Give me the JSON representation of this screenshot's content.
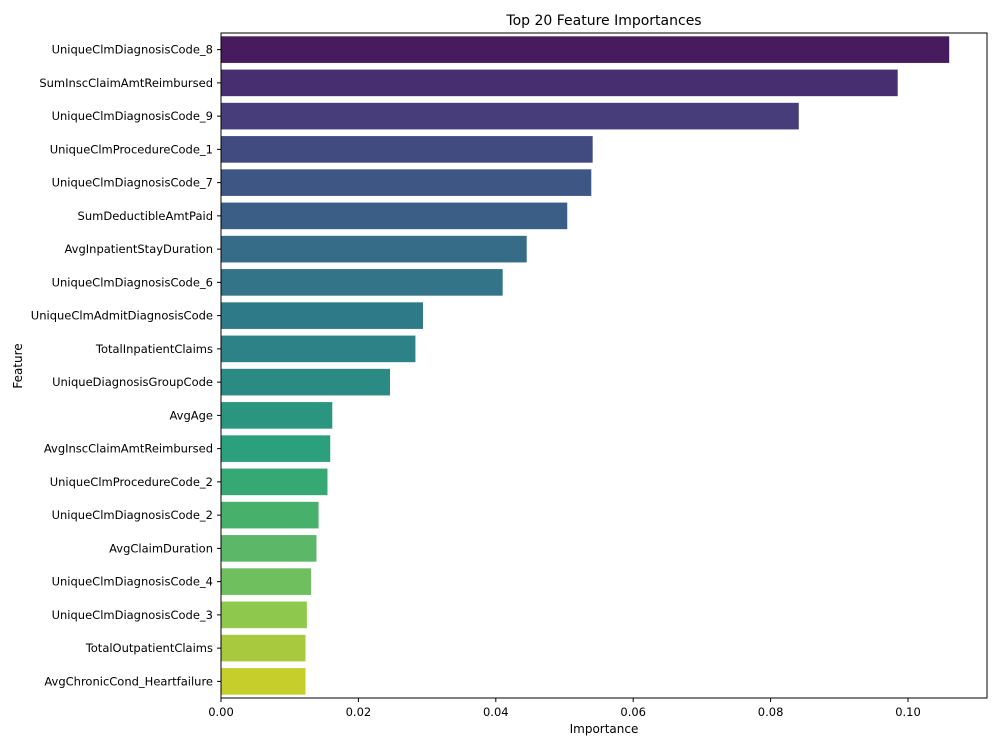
{
  "chart_data": {
    "type": "bar",
    "orientation": "horizontal",
    "title": "Top 20 Feature Importances",
    "xlabel": "Importance",
    "ylabel": "Feature",
    "xlim": [
      0,
      0.1115
    ],
    "xticks": [
      0.0,
      0.02,
      0.04,
      0.06,
      0.08,
      0.1
    ],
    "xtick_labels": [
      "0.00",
      "0.02",
      "0.04",
      "0.06",
      "0.08",
      "0.10"
    ],
    "grid": false,
    "colormap": "viridis",
    "categories": [
      "UniqueClmDiagnosisCode_8",
      "SumInscClaimAmtReimbursed",
      "UniqueClmDiagnosisCode_9",
      "UniqueClmProcedureCode_1",
      "UniqueClmDiagnosisCode_7",
      "SumDeductibleAmtPaid",
      "AvgInpatientStayDuration",
      "UniqueClmDiagnosisCode_6",
      "UniqueClmAdmitDiagnosisCode",
      "TotalInpatientClaims",
      "UniqueDiagnosisGroupCode",
      "AvgAge",
      "AvgInscClaimAmtReimbursed",
      "UniqueClmProcedureCode_2",
      "UniqueClmDiagnosisCode_2",
      "AvgClaimDuration",
      "UniqueClmDiagnosisCode_4",
      "UniqueClmDiagnosisCode_3",
      "TotalOutpatientClaims",
      "AvgChronicCond_Heartfailure"
    ],
    "values": [
      0.106,
      0.0985,
      0.0841,
      0.0541,
      0.0539,
      0.0504,
      0.0445,
      0.041,
      0.0294,
      0.0283,
      0.0246,
      0.0162,
      0.0159,
      0.0155,
      0.0142,
      0.0139,
      0.0131,
      0.0125,
      0.0123,
      0.0123
    ],
    "colors": [
      "#481b5e",
      "#472e70",
      "#463d7a",
      "#424b80",
      "#3e5683",
      "#3b5e86",
      "#366c88",
      "#337489",
      "#2f7a88",
      "#2d8287",
      "#2b8b84",
      "#2a9680",
      "#2ca07c",
      "#35a874",
      "#47b16c",
      "#5cb868",
      "#6fbf5e",
      "#8ec94d",
      "#a8c83e",
      "#c6ce2c"
    ]
  }
}
